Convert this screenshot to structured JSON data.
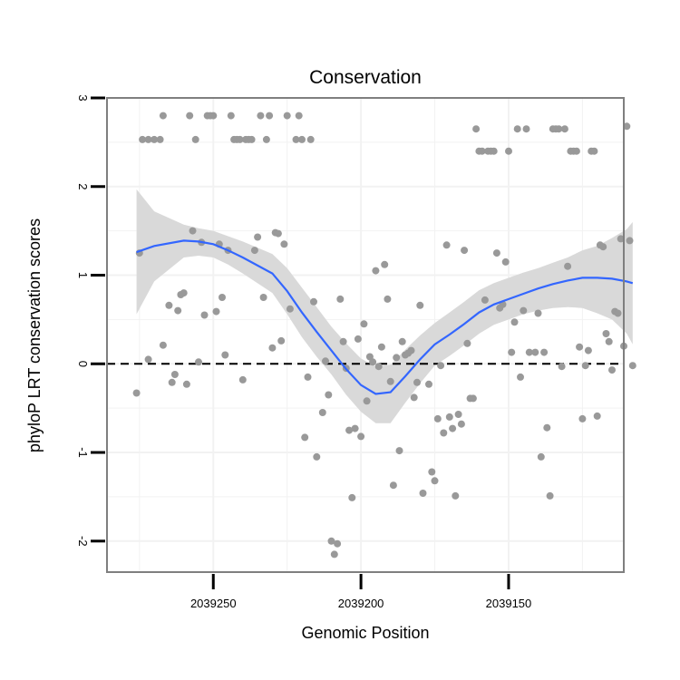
{
  "chart_data": {
    "type": "scatter",
    "title": "Conservation",
    "xlabel": "Genomic Position",
    "ylabel": "phyloP LRT conservation scores",
    "x_reversed": true,
    "xlim": [
      2039111,
      2039286
    ],
    "ylim": [
      -2.35,
      3.0
    ],
    "x_ticks": [
      2039250,
      2039200,
      2039150
    ],
    "x_tick_labels": [
      "2039250",
      "2039200",
      "2039150"
    ],
    "y_ticks": [
      -2,
      -1,
      0,
      1,
      2,
      3
    ],
    "y_tick_labels": [
      "-2",
      "-1",
      "0",
      "1",
      "2",
      "3"
    ],
    "reference_line": {
      "y": 0,
      "style": "dashed"
    },
    "colors": {
      "points": "#999999",
      "smooth": "#3366ff",
      "ribbon": "#d9d9d9",
      "frame": "#7f7f7f",
      "grid": "#f2f2f2"
    },
    "points": [
      [
        2039276,
        -0.33
      ],
      [
        2039275,
        1.25
      ],
      [
        2039274,
        2.53
      ],
      [
        2039272,
        2.53
      ],
      [
        2039272,
        0.05
      ],
      [
        2039270,
        2.53
      ],
      [
        2039268,
        2.53
      ],
      [
        2039267,
        2.8
      ],
      [
        2039267,
        0.21
      ],
      [
        2039265,
        0.66
      ],
      [
        2039264,
        -0.21
      ],
      [
        2039263,
        -0.12
      ],
      [
        2039262,
        0.6
      ],
      [
        2039261,
        0.78
      ],
      [
        2039260,
        0.8
      ],
      [
        2039259,
        -0.23
      ],
      [
        2039258,
        2.8
      ],
      [
        2039257,
        1.5
      ],
      [
        2039256,
        2.53
      ],
      [
        2039255,
        0.02
      ],
      [
        2039254,
        1.37
      ],
      [
        2039253,
        0.55
      ],
      [
        2039252,
        2.8
      ],
      [
        2039251,
        2.8
      ],
      [
        2039250,
        2.8
      ],
      [
        2039249,
        0.59
      ],
      [
        2039248,
        1.35
      ],
      [
        2039247,
        0.75
      ],
      [
        2039246,
        0.1
      ],
      [
        2039245,
        1.28
      ],
      [
        2039244,
        2.8
      ],
      [
        2039243,
        2.53
      ],
      [
        2039242,
        2.53
      ],
      [
        2039241,
        2.53
      ],
      [
        2039240,
        -0.18
      ],
      [
        2039239,
        2.53
      ],
      [
        2039238,
        2.53
      ],
      [
        2039237,
        2.53
      ],
      [
        2039236,
        1.28
      ],
      [
        2039235,
        1.43
      ],
      [
        2039234,
        2.8
      ],
      [
        2039233,
        0.75
      ],
      [
        2039232,
        2.53
      ],
      [
        2039231,
        2.8
      ],
      [
        2039230,
        0.18
      ],
      [
        2039229,
        1.48
      ],
      [
        2039228,
        1.47
      ],
      [
        2039227,
        0.26
      ],
      [
        2039226,
        1.35
      ],
      [
        2039225,
        2.8
      ],
      [
        2039224,
        0.62
      ],
      [
        2039222,
        2.53
      ],
      [
        2039221,
        2.8
      ],
      [
        2039220,
        2.53
      ],
      [
        2039219,
        -0.83
      ],
      [
        2039218,
        -0.15
      ],
      [
        2039217,
        2.53
      ],
      [
        2039216,
        0.7
      ],
      [
        2039215,
        -1.05
      ],
      [
        2039213,
        -0.55
      ],
      [
        2039212,
        0.03
      ],
      [
        2039211,
        -0.35
      ],
      [
        2039210,
        -2.0
      ],
      [
        2039209,
        -2.15
      ],
      [
        2039208,
        -2.03
      ],
      [
        2039207,
        0.73
      ],
      [
        2039206,
        0.25
      ],
      [
        2039205,
        -0.05
      ],
      [
        2039204,
        -0.75
      ],
      [
        2039203,
        -1.51
      ],
      [
        2039202,
        -0.73
      ],
      [
        2039201,
        0.28
      ],
      [
        2039200,
        -0.82
      ],
      [
        2039199,
        0.45
      ],
      [
        2039198,
        -0.42
      ],
      [
        2039197,
        0.08
      ],
      [
        2039196,
        0.02
      ],
      [
        2039195,
        1.05
      ],
      [
        2039194,
        -0.03
      ],
      [
        2039193,
        0.19
      ],
      [
        2039192,
        1.12
      ],
      [
        2039191,
        0.73
      ],
      [
        2039190,
        -0.2
      ],
      [
        2039189,
        -1.37
      ],
      [
        2039188,
        0.07
      ],
      [
        2039187,
        -0.98
      ],
      [
        2039186,
        0.25
      ],
      [
        2039185,
        0.1
      ],
      [
        2039184,
        0.12
      ],
      [
        2039183,
        0.15
      ],
      [
        2039182,
        -0.38
      ],
      [
        2039181,
        -0.21
      ],
      [
        2039180,
        0.66
      ],
      [
        2039179,
        -1.46
      ],
      [
        2039177,
        -0.23
      ],
      [
        2039176,
        -1.22
      ],
      [
        2039175,
        -1.32
      ],
      [
        2039174,
        -0.62
      ],
      [
        2039173,
        -0.02
      ],
      [
        2039172,
        -0.78
      ],
      [
        2039171,
        1.34
      ],
      [
        2039170,
        -0.6
      ],
      [
        2039169,
        -0.73
      ],
      [
        2039168,
        -1.49
      ],
      [
        2039167,
        -0.57
      ],
      [
        2039166,
        -0.68
      ],
      [
        2039165,
        1.28
      ],
      [
        2039164,
        0.23
      ],
      [
        2039163,
        -0.39
      ],
      [
        2039162,
        -0.39
      ],
      [
        2039161,
        2.65
      ],
      [
        2039160,
        2.4
      ],
      [
        2039159,
        2.4
      ],
      [
        2039158,
        0.72
      ],
      [
        2039157,
        2.4
      ],
      [
        2039156,
        2.4
      ],
      [
        2039155,
        2.4
      ],
      [
        2039154,
        1.25
      ],
      [
        2039153,
        0.63
      ],
      [
        2039152,
        0.67
      ],
      [
        2039151,
        1.15
      ],
      [
        2039150,
        2.4
      ],
      [
        2039149,
        0.13
      ],
      [
        2039148,
        0.47
      ],
      [
        2039147,
        2.65
      ],
      [
        2039146,
        -0.15
      ],
      [
        2039145,
        0.6
      ],
      [
        2039144,
        2.65
      ],
      [
        2039143,
        0.13
      ],
      [
        2039141,
        0.13
      ],
      [
        2039140,
        0.57
      ],
      [
        2039139,
        -1.05
      ],
      [
        2039138,
        0.13
      ],
      [
        2039137,
        -0.72
      ],
      [
        2039136,
        -1.49
      ],
      [
        2039135,
        2.65
      ],
      [
        2039134,
        2.65
      ],
      [
        2039133,
        2.65
      ],
      [
        2039132,
        -0.03
      ],
      [
        2039131,
        2.65
      ],
      [
        2039130,
        1.1
      ],
      [
        2039129,
        2.4
      ],
      [
        2039128,
        2.4
      ],
      [
        2039127,
        2.4
      ],
      [
        2039126,
        0.19
      ],
      [
        2039125,
        -0.62
      ],
      [
        2039124,
        -0.02
      ],
      [
        2039123,
        0.15
      ],
      [
        2039122,
        2.4
      ],
      [
        2039121,
        2.4
      ],
      [
        2039120,
        -0.59
      ],
      [
        2039119,
        1.34
      ],
      [
        2039118,
        1.32
      ],
      [
        2039117,
        0.34
      ],
      [
        2039116,
        0.25
      ],
      [
        2039115,
        -0.07
      ],
      [
        2039114,
        0.59
      ],
      [
        2039113,
        0.57
      ],
      [
        2039112,
        1.41
      ],
      [
        2039111,
        0.2
      ],
      [
        2039110,
        2.68
      ],
      [
        2039109,
        1.39
      ],
      [
        2039108,
        -0.02
      ]
    ],
    "smooth": {
      "x": [
        2039276,
        2039270,
        2039260,
        2039255,
        2039250,
        2039245,
        2039240,
        2039230,
        2039225,
        2039220,
        2039215,
        2039210,
        2039205,
        2039200,
        2039195,
        2039190,
        2039185,
        2039180,
        2039175,
        2039170,
        2039165,
        2039160,
        2039155,
        2039150,
        2039145,
        2039140,
        2039135,
        2039130,
        2039125,
        2039120,
        2039115,
        2039110,
        2039108
      ],
      "y": [
        1.26,
        1.33,
        1.39,
        1.38,
        1.35,
        1.28,
        1.2,
        1.02,
        0.82,
        0.58,
        0.36,
        0.15,
        -0.06,
        -0.24,
        -0.34,
        -0.32,
        -0.14,
        0.05,
        0.22,
        0.33,
        0.45,
        0.58,
        0.67,
        0.73,
        0.79,
        0.85,
        0.9,
        0.94,
        0.97,
        0.97,
        0.96,
        0.93,
        0.91
      ],
      "upper": [
        1.97,
        1.72,
        1.57,
        1.53,
        1.5,
        1.44,
        1.38,
        1.24,
        1.08,
        0.86,
        0.64,
        0.42,
        0.23,
        0.06,
        -0.03,
        -0.01,
        0.16,
        0.32,
        0.46,
        0.58,
        0.7,
        0.83,
        0.91,
        0.97,
        1.03,
        1.08,
        1.14,
        1.2,
        1.28,
        1.33,
        1.42,
        1.52,
        1.6
      ],
      "lower": [
        0.56,
        0.93,
        1.2,
        1.22,
        1.2,
        1.12,
        1.02,
        0.8,
        0.56,
        0.3,
        0.08,
        -0.12,
        -0.35,
        -0.54,
        -0.67,
        -0.67,
        -0.44,
        -0.22,
        -0.02,
        0.09,
        0.21,
        0.34,
        0.44,
        0.5,
        0.56,
        0.6,
        0.63,
        0.64,
        0.63,
        0.57,
        0.5,
        0.34,
        0.22
      ]
    }
  }
}
